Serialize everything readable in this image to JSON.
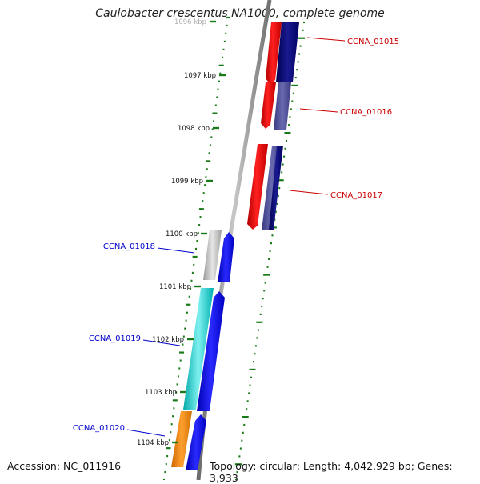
{
  "title": "Caulobacter crescentus NA1000, complete genome",
  "footer": {
    "accession": "Accession: NC_011916",
    "topology": "Topology: circular; Length: 4,042,929 bp; Genes: 3,933"
  },
  "scale": {
    "ticks": [
      "1096 kbp",
      "1097 kbp",
      "1098 kbp",
      "1099 kbp",
      "1100 kbp",
      "1101 kbp",
      "1102 kbp",
      "1103 kbp",
      "1104 kbp"
    ]
  },
  "genes": [
    {
      "label": "CCNA_01015",
      "strand": "reverse",
      "color": "#cc0000"
    },
    {
      "label": "CCNA_01016",
      "strand": "reverse",
      "color": "#cc0000"
    },
    {
      "label": "CCNA_01017",
      "strand": "reverse",
      "color": "#cc0000"
    },
    {
      "label": "CCNA_01018",
      "strand": "forward",
      "color": "#0000cc"
    },
    {
      "label": "CCNA_01019",
      "strand": "forward",
      "color": "#0000cc"
    },
    {
      "label": "CCNA_01020",
      "strand": "forward",
      "color": "#0000cc"
    }
  ],
  "colors": {
    "reverse_cds": "#ff0000",
    "reverse_cds_dark": "#000080",
    "forward_cds": "#0000ff",
    "gc_dots": "#1a7a1a",
    "backbone": "#808080"
  }
}
